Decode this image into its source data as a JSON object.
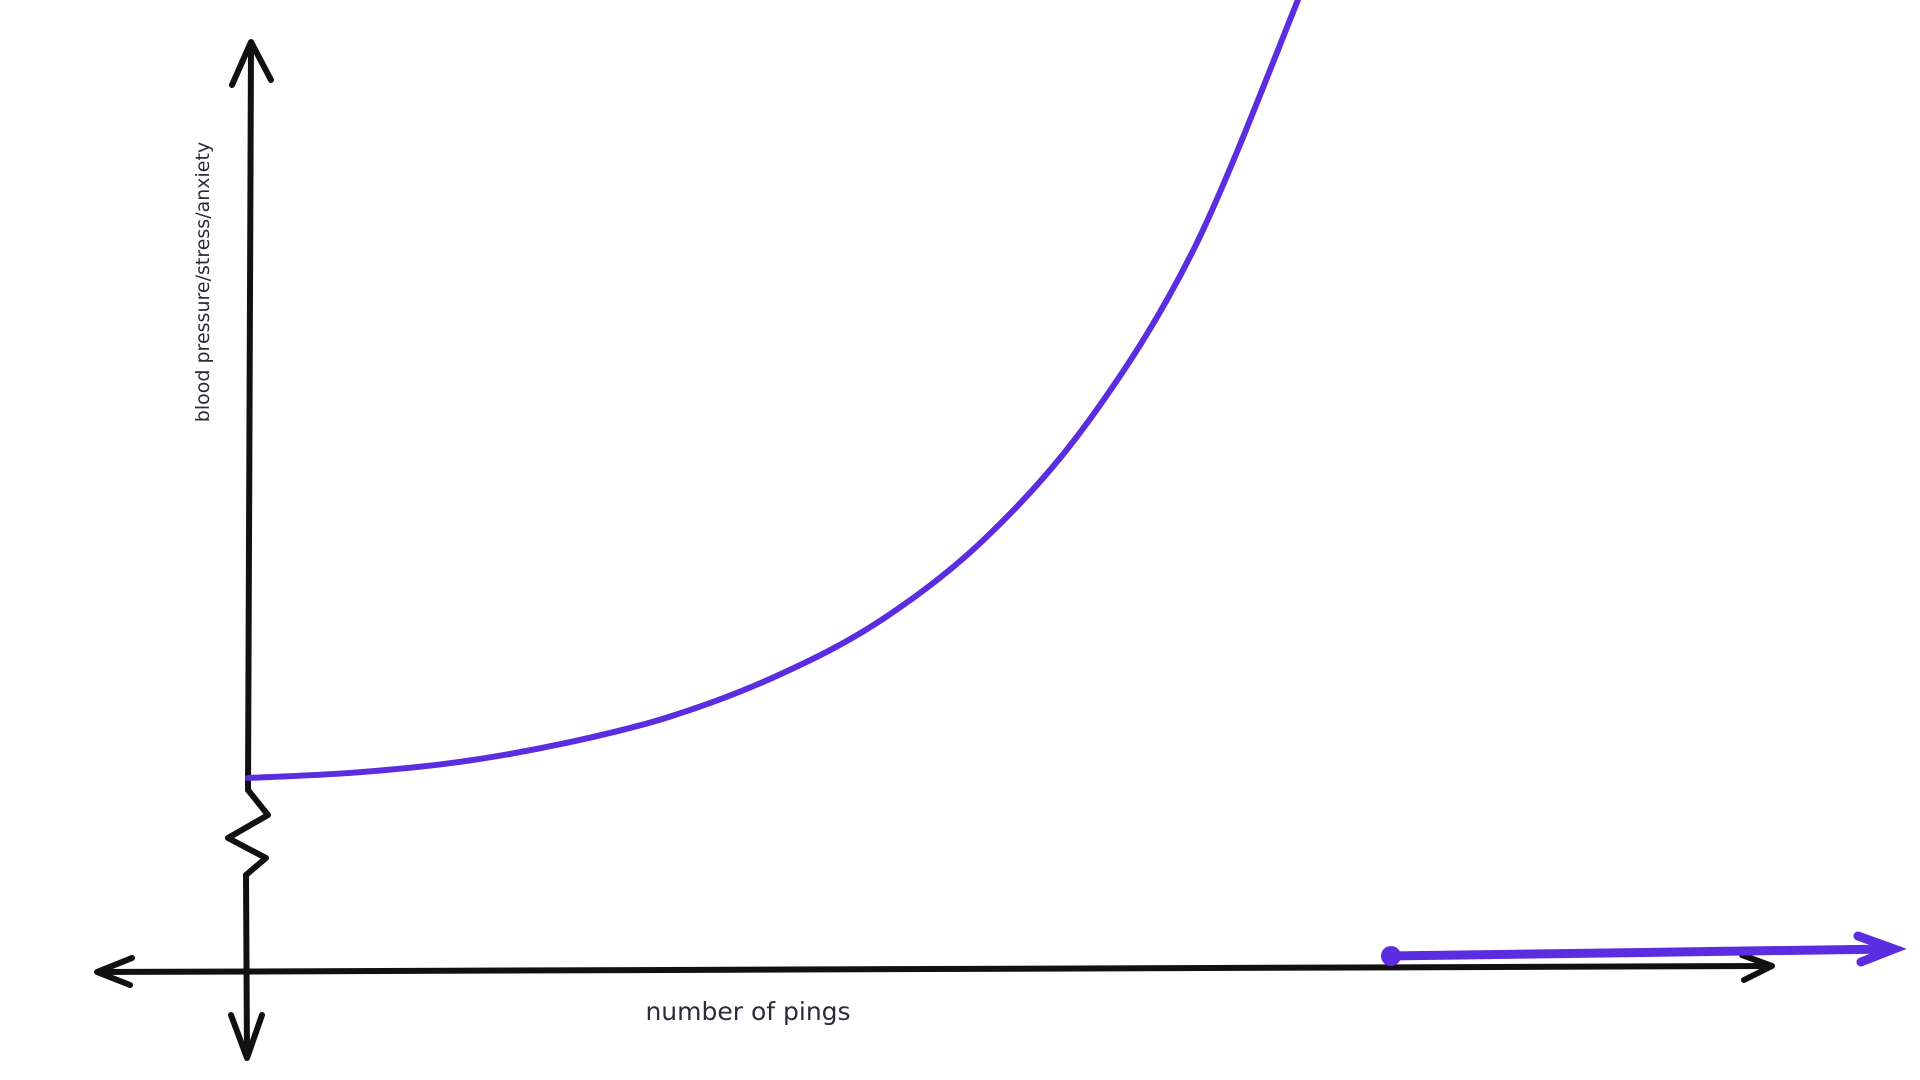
{
  "chart_data": {
    "type": "line",
    "title": "",
    "xlabel": "number of pings",
    "ylabel": "blood pressure/stress/anxiety",
    "y_axis_break": true,
    "grid": false,
    "legend": "none",
    "series": [
      {
        "values_description_free": true,
        "x": [
          0,
          1,
          2,
          3,
          4,
          5,
          6,
          7,
          8,
          9,
          10
        ],
        "y": [
          1.0,
          1.2,
          1.6,
          2.3,
          3.3,
          4.8,
          6.9,
          10.0,
          14.5,
          21.0,
          30.5
        ]
      }
    ],
    "colors": {
      "curve": "#5b2de0",
      "axes": "#111111",
      "background": "#ffffff"
    }
  }
}
